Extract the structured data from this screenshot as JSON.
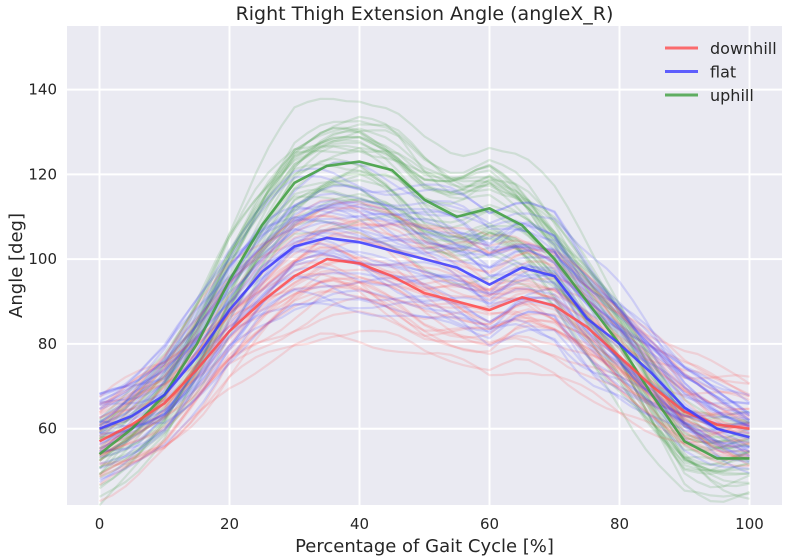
{
  "chart_data": {
    "type": "line",
    "title": "Right Thigh Extension Angle (angleX_R)",
    "xlabel": "Percentage of Gait Cycle [%]",
    "ylabel": "Angle [deg]",
    "xlim": [
      -5,
      105
    ],
    "ylim": [
      42,
      155
    ],
    "xticks": [
      0,
      20,
      40,
      60,
      80,
      100
    ],
    "yticks": [
      60,
      80,
      100,
      120,
      140
    ],
    "grid": true,
    "legend_position": "top-right",
    "series": [
      {
        "name": "downhill",
        "color": "#ff4b4b",
        "representative": {
          "x": [
            0,
            5,
            10,
            15,
            20,
            25,
            30,
            35,
            40,
            45,
            50,
            55,
            60,
            65,
            70,
            75,
            80,
            85,
            90,
            95,
            100
          ],
          "y": [
            57,
            61,
            66,
            74,
            83,
            90,
            96,
            100,
            99,
            96,
            92,
            90,
            88,
            91,
            89,
            84,
            77,
            70,
            64,
            61,
            60
          ]
        }
      },
      {
        "name": "flat",
        "color": "#3b3bff",
        "representative": {
          "x": [
            0,
            5,
            10,
            15,
            20,
            25,
            30,
            35,
            40,
            45,
            50,
            55,
            60,
            65,
            70,
            75,
            80,
            85,
            90,
            95,
            100
          ],
          "y": [
            60,
            63,
            68,
            77,
            88,
            97,
            103,
            105,
            104,
            102,
            100,
            98,
            94,
            98,
            96,
            86,
            80,
            73,
            65,
            60,
            58
          ]
        }
      },
      {
        "name": "uphill",
        "color": "#3c9e3c",
        "representative": {
          "x": [
            0,
            5,
            10,
            15,
            20,
            25,
            30,
            35,
            40,
            45,
            50,
            55,
            60,
            65,
            70,
            75,
            80,
            85,
            90,
            95,
            100
          ],
          "y": [
            54,
            60,
            68,
            80,
            95,
            108,
            118,
            122,
            123,
            121,
            114,
            110,
            112,
            108,
            100,
            90,
            80,
            68,
            57,
            53,
            53
          ]
        }
      }
    ]
  }
}
